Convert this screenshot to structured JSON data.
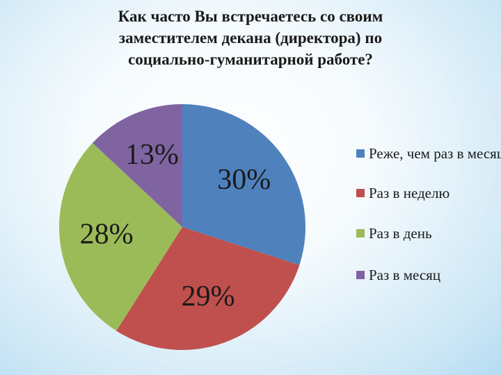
{
  "chart_data": {
    "type": "pie",
    "title": "Как часто Вы встречаетесь со своим заместителем декана (директора) по социально-гуманитарной работе?",
    "categories": [
      "Реже, чем раз в месяц",
      "Раз в неделю",
      "Раз в день",
      "Раз в месяц"
    ],
    "values": [
      30,
      29,
      28,
      13
    ],
    "value_labels": [
      "30%",
      "29%",
      "28%",
      "13%"
    ],
    "colors": [
      "#4f81bd",
      "#c0504d",
      "#9bbb59",
      "#8064a2"
    ],
    "legend": "right"
  }
}
